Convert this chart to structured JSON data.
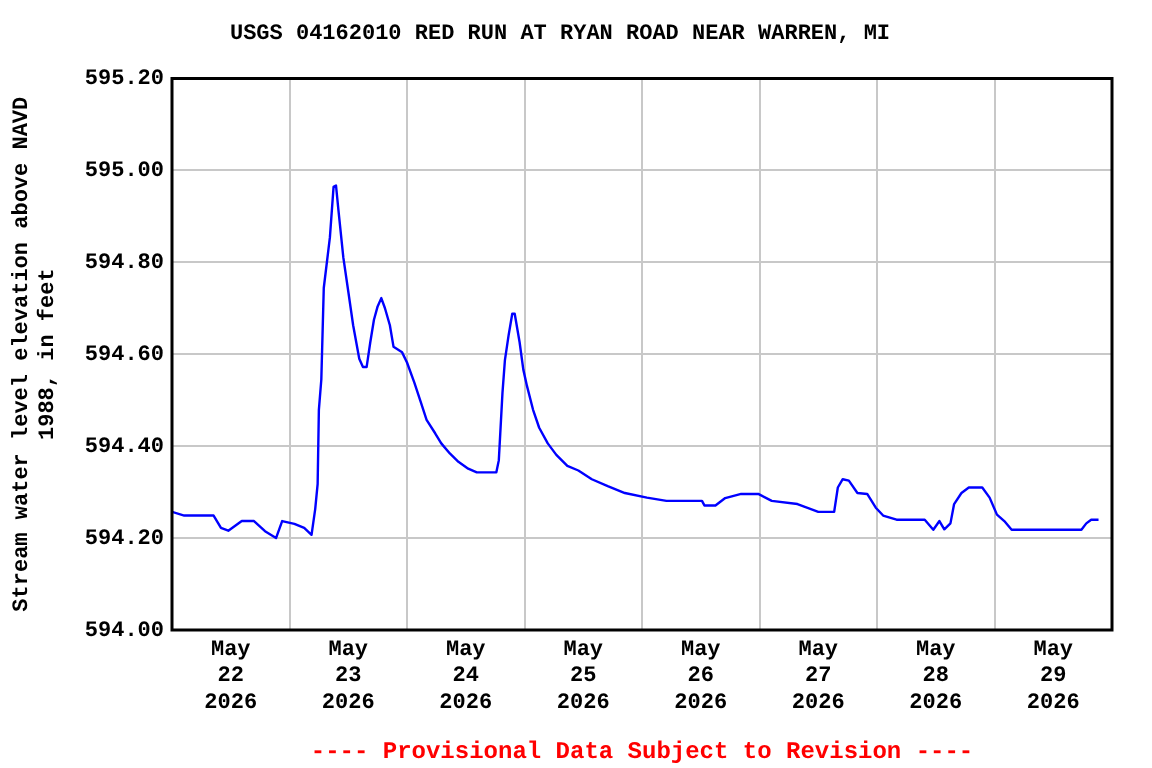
{
  "chart_data": {
    "type": "line",
    "title": "USGS 04162010 RED RUN AT RYAN ROAD NEAR WARREN, MI",
    "ylabel": "Stream water level elevation above NAVD 1988, in feet",
    "annotations": [
      "---- Provisional Data Subject to Revision ----"
    ],
    "x": [
      "2026-05-22T00:00",
      "2026-05-22T02:30",
      "2026-05-22T08:30",
      "2026-05-22T10:00",
      "2026-05-22T11:30",
      "2026-05-22T14:15",
      "2026-05-22T16:45",
      "2026-05-22T19:00",
      "2026-05-22T21:15",
      "2026-05-22T22:30",
      "2026-05-23T01:00",
      "2026-05-23T03:00",
      "2026-05-23T04:30",
      "2026-05-23T05:15",
      "2026-05-23T05:45",
      "2026-05-23T06:00",
      "2026-05-23T06:30",
      "2026-05-23T07:00",
      "2026-05-23T08:15",
      "2026-05-23T09:00",
      "2026-05-23T09:30",
      "2026-05-23T10:00",
      "2026-05-23T11:00",
      "2026-05-23T12:00",
      "2026-05-23T13:00",
      "2026-05-23T14:15",
      "2026-05-23T15:00",
      "2026-05-23T15:45",
      "2026-05-23T16:30",
      "2026-05-23T17:15",
      "2026-05-23T18:00",
      "2026-05-23T18:45",
      "2026-05-23T19:30",
      "2026-05-23T20:30",
      "2026-05-23T21:15",
      "2026-05-23T23:00",
      "2026-05-24T00:00",
      "2026-05-24T01:30",
      "2026-05-24T02:45",
      "2026-05-24T04:00",
      "2026-05-24T05:45",
      "2026-05-24T07:00",
      "2026-05-24T08:45",
      "2026-05-24T10:30",
      "2026-05-24T12:30",
      "2026-05-24T14:15",
      "2026-05-24T18:15",
      "2026-05-24T18:45",
      "2026-05-24T19:30",
      "2026-05-24T20:00",
      "2026-05-24T20:45",
      "2026-05-24T21:30",
      "2026-05-24T22:00",
      "2026-05-24T23:00",
      "2026-05-24T23:45",
      "2026-05-25T00:30",
      "2026-05-25T01:45",
      "2026-05-25T03:00",
      "2026-05-25T04:45",
      "2026-05-25T06:30",
      "2026-05-25T08:45",
      "2026-05-25T11:00",
      "2026-05-25T13:45",
      "2026-05-25T17:00",
      "2026-05-25T20:30",
      "2026-05-26T01:00",
      "2026-05-26T05:00",
      "2026-05-26T12:15",
      "2026-05-26T12:45",
      "2026-05-26T15:00",
      "2026-05-26T17:00",
      "2026-05-26T20:15",
      "2026-05-26T23:45",
      "2026-05-27T02:30",
      "2026-05-27T07:45",
      "2026-05-27T12:00",
      "2026-05-27T15:15",
      "2026-05-27T16:00",
      "2026-05-27T17:00",
      "2026-05-27T18:15",
      "2026-05-27T20:00",
      "2026-05-27T22:00",
      "2026-05-27T23:45",
      "2026-05-28T01:15",
      "2026-05-28T04:00",
      "2026-05-28T09:45",
      "2026-05-28T11:30",
      "2026-05-28T12:45",
      "2026-05-28T13:45",
      "2026-05-28T15:00",
      "2026-05-28T15:45",
      "2026-05-28T17:15",
      "2026-05-28T18:45",
      "2026-05-28T21:30",
      "2026-05-28T23:00",
      "2026-05-29T00:30",
      "2026-05-29T02:00",
      "2026-05-29T03:30",
      "2026-05-29T17:45",
      "2026-05-29T18:45",
      "2026-05-29T19:45",
      "2026-05-29T21:15"
    ],
    "series": [
      {
        "color": "#0000ff",
        "values": [
          594.257,
          594.249,
          594.249,
          594.222,
          594.216,
          594.237,
          594.237,
          594.215,
          594.2,
          594.237,
          594.231,
          594.222,
          594.207,
          594.263,
          594.318,
          594.479,
          594.545,
          594.744,
          594.854,
          594.964,
          594.967,
          594.913,
          594.81,
          594.737,
          594.663,
          594.59,
          594.572,
          594.572,
          594.626,
          594.675,
          594.704,
          594.722,
          594.7,
          594.663,
          594.616,
          594.604,
          594.582,
          594.538,
          594.498,
          594.457,
          594.428,
          594.406,
          594.384,
          594.366,
          594.351,
          594.343,
          594.343,
          594.369,
          594.516,
          594.587,
          594.641,
          594.688,
          594.688,
          594.626,
          594.567,
          594.531,
          594.479,
          594.44,
          594.406,
          594.381,
          594.357,
          594.347,
          594.328,
          594.313,
          594.298,
          594.288,
          594.281,
          594.281,
          594.271,
          594.271,
          594.287,
          594.296,
          594.296,
          594.281,
          594.274,
          594.257,
          594.257,
          594.31,
          594.328,
          594.325,
          594.298,
          594.296,
          594.266,
          594.249,
          594.24,
          594.24,
          594.218,
          594.237,
          594.219,
          594.232,
          594.274,
          594.298,
          594.31,
          594.31,
          594.288,
          594.251,
          594.237,
          594.218,
          594.218,
          594.232,
          594.24,
          594.24
        ]
      }
    ],
    "xlim": [
      "2026-05-22T00:00",
      "2026-05-30T00:00"
    ],
    "xticks": [
      {
        "value": "2026-05-23T00:00",
        "label": null
      },
      {
        "value": "2026-05-24T00:00",
        "label": null
      },
      {
        "value": "2026-05-25T00:00",
        "label": null
      },
      {
        "value": "2026-05-26T00:00",
        "label": null
      },
      {
        "value": "2026-05-27T00:00",
        "label": null
      },
      {
        "value": "2026-05-28T00:00",
        "label": null
      },
      {
        "value": "2026-05-29T00:00",
        "label": null
      },
      {
        "value": "2026-05-22T12:00",
        "label": "May 22 2026"
      },
      {
        "value": "2026-05-23T12:00",
        "label": "May 23 2026"
      },
      {
        "value": "2026-05-24T12:00",
        "label": "May 24 2026"
      },
      {
        "value": "2026-05-25T12:00",
        "label": "May 25 2026"
      },
      {
        "value": "2026-05-26T12:00",
        "label": "May 26 2026"
      },
      {
        "value": "2026-05-27T12:00",
        "label": "May 27 2026"
      },
      {
        "value": "2026-05-28T12:00",
        "label": "May 28 2026"
      },
      {
        "value": "2026-05-29T12:00",
        "label": "May 29 2026"
      }
    ],
    "ylim": [
      594.0,
      595.2
    ],
    "yticks": [
      {
        "value": 594.0,
        "label": "594.00"
      },
      {
        "value": 594.2,
        "label": "594.20"
      },
      {
        "value": 594.4,
        "label": "594.40"
      },
      {
        "value": 594.6,
        "label": "594.60"
      },
      {
        "value": 594.8,
        "label": "594.80"
      },
      {
        "value": 595.0,
        "label": "595.00"
      },
      {
        "value": 595.2,
        "label": "595.20"
      }
    ],
    "grid": true,
    "marker": "none",
    "line_style": "solid"
  }
}
